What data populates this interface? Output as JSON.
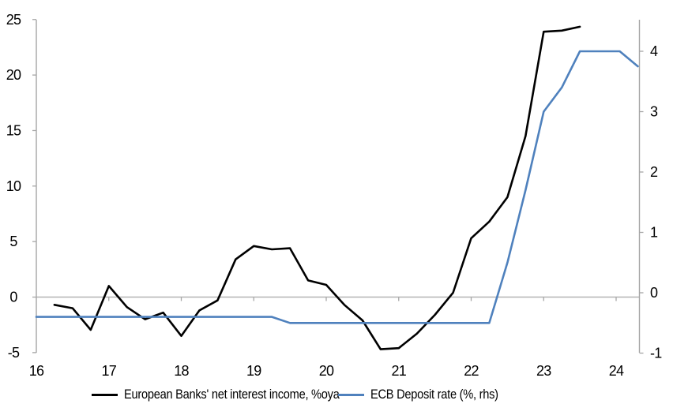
{
  "chart_data": {
    "type": "line",
    "title": "",
    "xlabel": "",
    "ylabel_left": "",
    "ylabel_right": "",
    "grid": "horizontal-zero-line-only",
    "legend_position": "bottom",
    "x_axis": {
      "ticks": [
        16,
        17,
        18,
        19,
        20,
        21,
        22,
        23,
        24
      ],
      "min": 16,
      "max": 24.33
    },
    "left_axis": {
      "ticks": [
        -5,
        0,
        5,
        10,
        15,
        20,
        25
      ],
      "min": -5,
      "max": 25.1
    },
    "right_axis": {
      "ticks": [
        -1,
        0,
        1,
        2,
        3,
        4
      ],
      "min": -1,
      "max": 4.55
    },
    "series": [
      {
        "name": "European Banks' net interest income, %oya",
        "axis": "left",
        "color": "#000000",
        "x": [
          16.25,
          16.5,
          16.75,
          17.0,
          17.25,
          17.5,
          17.75,
          18.0,
          18.25,
          18.5,
          18.75,
          19.0,
          19.25,
          19.5,
          19.75,
          20.0,
          20.25,
          20.5,
          20.75,
          21.0,
          21.25,
          21.5,
          21.75,
          22.0,
          22.25,
          22.5,
          22.75,
          23.0,
          23.25,
          23.5
        ],
        "y": [
          -0.7,
          -1.0,
          -2.95,
          1.0,
          -0.9,
          -2.0,
          -1.4,
          -3.5,
          -1.2,
          -0.3,
          3.4,
          4.6,
          4.3,
          4.4,
          1.5,
          1.1,
          -0.7,
          -2.1,
          -4.7,
          -4.6,
          -3.3,
          -1.6,
          0.4,
          5.3,
          6.8,
          9.0,
          14.5,
          23.9,
          24.0,
          24.35
        ]
      },
      {
        "name": "ECB Deposit rate (%, rhs)",
        "axis": "right",
        "color": "#4f81bd",
        "x": [
          16.0,
          16.25,
          16.5,
          16.75,
          17.0,
          17.25,
          17.5,
          17.75,
          18.0,
          18.25,
          18.5,
          18.75,
          19.0,
          19.25,
          19.5,
          19.75,
          20.0,
          20.25,
          20.5,
          20.75,
          21.0,
          21.25,
          21.5,
          21.75,
          22.0,
          22.25,
          22.5,
          22.75,
          23.0,
          23.25,
          23.5,
          23.75,
          24.05,
          24.3
        ],
        "y": [
          -0.4,
          -0.4,
          -0.4,
          -0.4,
          -0.4,
          -0.4,
          -0.4,
          -0.4,
          -0.4,
          -0.4,
          -0.4,
          -0.4,
          -0.4,
          -0.4,
          -0.5,
          -0.5,
          -0.5,
          -0.5,
          -0.5,
          -0.5,
          -0.5,
          -0.5,
          -0.5,
          -0.5,
          -0.5,
          -0.5,
          0.5,
          1.7,
          3.0,
          3.4,
          4.0,
          4.0,
          4.0,
          3.75
        ]
      }
    ]
  },
  "colors": {
    "axis": "#a6a6a6",
    "zero_line": "#b3b3b3",
    "text": "#000000",
    "background": "#ffffff"
  }
}
